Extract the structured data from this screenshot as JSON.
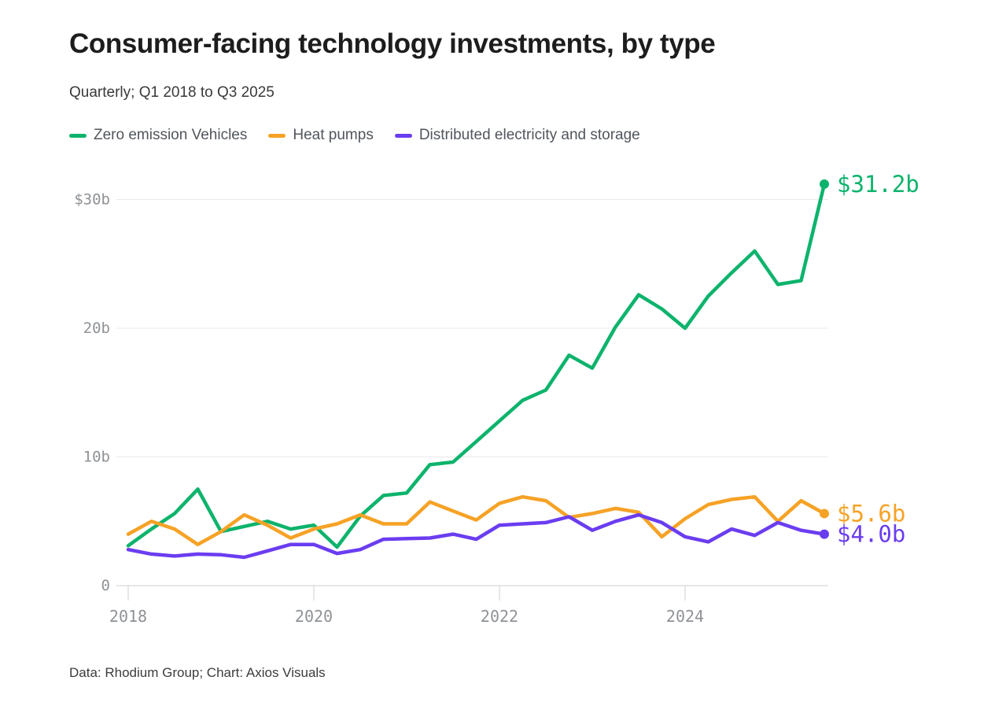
{
  "header": {
    "title": "Consumer-facing technology investments, by type",
    "subtitle": "Quarterly; Q1 2018 to Q3 2025"
  },
  "footer": {
    "credit": "Data: Rhodium Group; Chart: Axios Visuals"
  },
  "chart_data": {
    "type": "line",
    "title": "Consumer-facing technology investments, by type",
    "subtitle": "Quarterly; Q1 2018 to Q3 2025",
    "unit": "billion USD",
    "grid": "horizontal-only",
    "legend_position": "top-left",
    "ylim": [
      0,
      32
    ],
    "x_labels": [
      "2018Q1",
      "2018Q2",
      "2018Q3",
      "2018Q4",
      "2019Q1",
      "2019Q2",
      "2019Q3",
      "2019Q4",
      "2020Q1",
      "2020Q2",
      "2020Q3",
      "2020Q4",
      "2021Q1",
      "2021Q2",
      "2021Q3",
      "2021Q4",
      "2022Q1",
      "2022Q2",
      "2022Q3",
      "2022Q4",
      "2023Q1",
      "2023Q2",
      "2023Q3",
      "2023Q4",
      "2024Q1",
      "2024Q2",
      "2024Q3",
      "2024Q4",
      "2025Q1",
      "2025Q2",
      "2025Q3"
    ],
    "y_axis": {
      "ticks": [
        {
          "value": 30,
          "label": "$30b"
        },
        {
          "value": 20,
          "label": "20b"
        },
        {
          "value": 10,
          "label": "10b"
        },
        {
          "value": 0,
          "label": "0"
        }
      ]
    },
    "x_axis": {
      "ticks": [
        {
          "label": "2018",
          "quarter_index": 0
        },
        {
          "label": "2020",
          "quarter_index": 8
        },
        {
          "label": "2022",
          "quarter_index": 16
        },
        {
          "label": "2024",
          "quarter_index": 24
        }
      ]
    },
    "series": [
      {
        "id": "zev",
        "name": "Zero emission Vehicles",
        "color": "#0db36c",
        "end_label": "$31.2b",
        "values": [
          3.1,
          4.4,
          5.6,
          7.5,
          4.2,
          4.6,
          5.0,
          4.4,
          4.7,
          3.0,
          5.4,
          7.0,
          7.2,
          9.4,
          9.6,
          11.2,
          12.8,
          14.4,
          15.2,
          17.9,
          16.9,
          20.1,
          22.6,
          21.5,
          20.0,
          22.5,
          24.3,
          26.0,
          23.4,
          23.7,
          31.2
        ]
      },
      {
        "id": "heat-pumps",
        "name": "Heat pumps",
        "color": "#f6a226",
        "end_label": "$5.6b",
        "values": [
          4.0,
          5.0,
          4.4,
          3.2,
          4.2,
          5.5,
          4.7,
          3.7,
          4.4,
          4.8,
          5.5,
          4.8,
          4.8,
          6.5,
          5.8,
          5.1,
          6.4,
          6.9,
          6.6,
          5.3,
          5.6,
          6.0,
          5.7,
          3.8,
          5.2,
          6.3,
          6.7,
          6.9,
          5.0,
          6.6,
          5.6
        ]
      },
      {
        "id": "distributed",
        "name": "Distributed electricity and storage",
        "color": "#6a3df0",
        "end_label": "$4.0b",
        "values": [
          2.8,
          2.45,
          2.3,
          2.45,
          2.4,
          2.2,
          2.7,
          3.2,
          3.2,
          2.5,
          2.8,
          3.6,
          3.65,
          3.7,
          4.0,
          3.6,
          4.7,
          4.8,
          4.9,
          5.35,
          4.3,
          5.0,
          5.5,
          4.9,
          3.8,
          3.4,
          4.4,
          3.9,
          4.9,
          4.3,
          4.0
        ]
      }
    ]
  }
}
